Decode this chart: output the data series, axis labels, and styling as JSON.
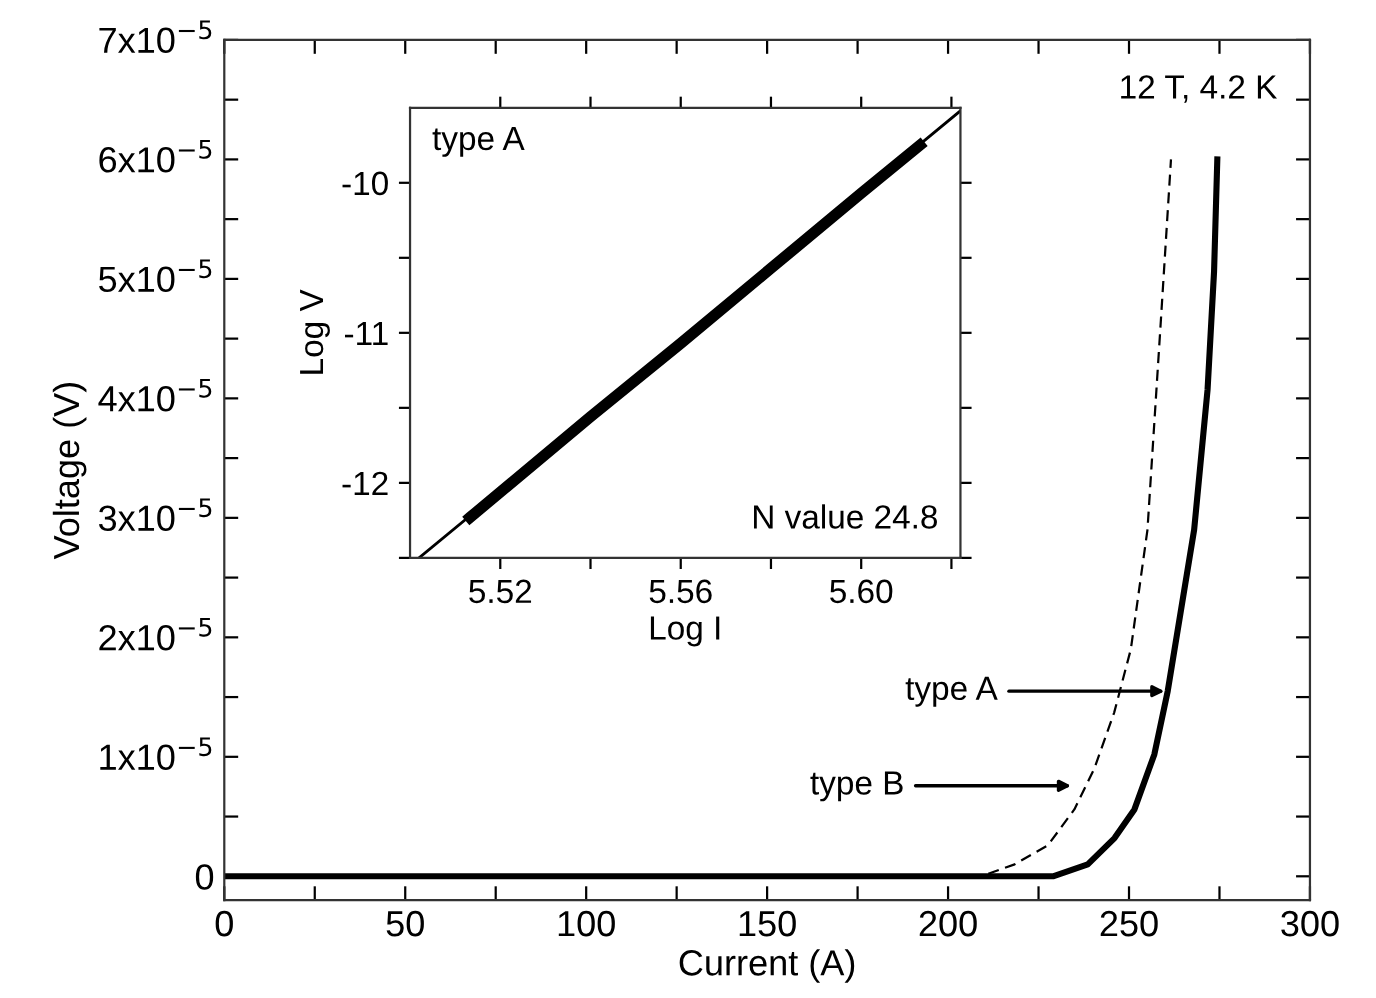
{
  "chart_data": [
    {
      "type": "line",
      "xlabel": "Current (A)",
      "ylabel": "Voltage (V)",
      "xlim": [
        0,
        300
      ],
      "ylim": [
        -2e-06,
        7e-05
      ],
      "xticks": [
        0,
        {
          "value": 25,
          "label": null
        },
        50,
        {
          "value": 75,
          "label": null
        },
        100,
        {
          "value": 125,
          "label": null
        },
        150,
        {
          "value": 175,
          "label": null
        },
        200,
        {
          "value": 225,
          "label": null
        },
        250,
        {
          "value": 275,
          "label": null
        },
        300
      ],
      "yticks": [
        {
          "value": 0,
          "label": "0"
        },
        {
          "value": 5e-06,
          "label": null
        },
        {
          "value": 1e-05,
          "label": "1x10$^{−5}$"
        },
        {
          "value": 1.5e-05,
          "label": null
        },
        {
          "value": 2e-05,
          "label": "2x10$^{−5}$"
        },
        {
          "value": 2.5e-05,
          "label": null
        },
        {
          "value": 3e-05,
          "label": "3x10$^{−5}$"
        },
        {
          "value": 3.5e-05,
          "label": null
        },
        {
          "value": 4e-05,
          "label": "4x10$^{−5}$"
        },
        {
          "value": 4.5e-05,
          "label": null
        },
        {
          "value": 5e-05,
          "label": "5x10$^{−5}$"
        },
        {
          "value": 5.5e-05,
          "label": null
        },
        {
          "value": 6e-05,
          "label": "6x10$^{−5}$"
        },
        {
          "value": 6.5e-05,
          "label": null
        },
        {
          "value": 7e-05,
          "label": "7x10$^{−5}$"
        }
      ],
      "grid": false,
      "legend": false,
      "marker": "none",
      "series": [
        {
          "color": "#000000",
          "line_style": "solid",
          "x": [
            0,
            50,
            100,
            150,
            200,
            214.7,
            229,
            238.6,
            246,
            251.5,
            257,
            260.7,
            268,
            271.7,
            273.5,
            274.4
          ],
          "values": [
            0,
            0,
            0,
            0,
            0,
            0,
            0,
            1e-06,
            3.2e-06,
            5.6e-06,
            1.02e-05,
            1.55e-05,
            2.9e-05,
            4.07e-05,
            5.06e-05,
            6e-05
          ]
        },
        {
          "color": "#000000",
          "line_style": "dashed",
          "x": [
            0,
            50,
            100,
            150,
            200,
            209.2,
            218.4,
            227.6,
            234.9,
            240.4,
            245.9,
            250.5,
            255.1,
            258.8,
            261.6
          ],
          "values": [
            0,
            0,
            0,
            0,
            0,
            0,
            1e-06,
            2.6e-06,
            5.6e-06,
            9e-06,
            1.37e-05,
            1.9e-05,
            2.9e-05,
            4.65e-05,
            6e-05
          ]
        }
      ],
      "annotations": [
        "12 T, 4.2 K",
        "type A",
        "type B"
      ]
    },
    {
      "type": "line",
      "xlabel": "Log I",
      "ylabel": "Log V",
      "xlim": [
        5.5,
        5.622
      ],
      "ylim": [
        -12.5,
        -9.5
      ],
      "xticks": [
        5.52,
        {
          "value": 5.54,
          "label": null
        },
        5.56,
        {
          "value": 5.58,
          "label": null
        },
        {
          "value": 5.6,
          "label": "5.60"
        },
        {
          "value": 5.62,
          "label": null
        }
      ],
      "yticks": [
        {
          "value": -12.5,
          "label": null
        },
        -12,
        {
          "value": -11.5,
          "label": null
        },
        -11,
        {
          "value": -10.5,
          "label": null
        },
        -10
      ],
      "grid": false,
      "legend": false,
      "marker": "none",
      "series": [
        {
          "color": "#000000",
          "line_style": "solid",
          "x": [
            5.5133,
            5.54,
            5.56,
            5.58,
            5.6,
            5.613
          ],
          "values": [
            -12.23,
            -11.56,
            -11.07,
            -10.57,
            -10.07,
            -9.75
          ]
        },
        {
          "color": "#000000",
          "line_style": "solid",
          "x": [
            5.502,
            5.622
          ],
          "values": [
            -12.5,
            -9.52
          ]
        }
      ],
      "annotations": [
        "type A",
        "N value 24.8"
      ]
    }
  ]
}
